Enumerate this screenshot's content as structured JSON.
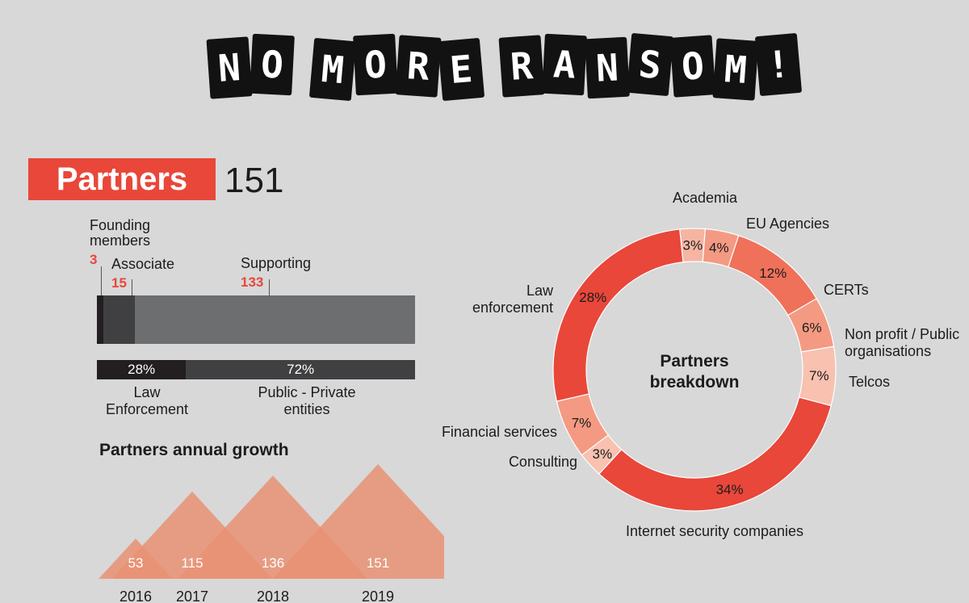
{
  "title": {
    "letters": [
      "N",
      "O",
      " ",
      "M",
      "O",
      "R",
      "E",
      " ",
      "R",
      "A",
      "N",
      "S",
      "O",
      "M",
      "!"
    ],
    "text": "NO MORE RANSOM!"
  },
  "partners": {
    "heading": "Partners",
    "total": "151",
    "membership": {
      "founding_label": "Founding members",
      "founding_value": "3",
      "associate_label": "Associate",
      "associate_value": "15",
      "supporting_label": "Supporting",
      "supporting_value": "133"
    },
    "type_split": {
      "law_pct": "28%",
      "law_label": "Law Enforcement",
      "public_pct": "72%",
      "public_label": "Public - Private entities"
    },
    "growth_title": "Partners annual growth"
  },
  "colors": {
    "accent": "#e8473a",
    "salmon": "#e99274",
    "bar_dark": "#231f20",
    "bar_mid": "#404042",
    "bar_light": "#6d6e70"
  },
  "chart_data": [
    {
      "type": "bar",
      "title": "",
      "categories": [
        "Founding members",
        "Associate",
        "Supporting"
      ],
      "values": [
        3,
        15,
        133
      ],
      "stacked": true
    },
    {
      "type": "bar",
      "title": "",
      "categories": [
        "Law Enforcement",
        "Public - Private entities"
      ],
      "values": [
        28,
        72
      ],
      "labels": [
        "28%",
        "72%"
      ],
      "stacked": true
    },
    {
      "type": "area",
      "title": "Partners annual growth",
      "categories": [
        "2016",
        "2017",
        "2018",
        "2019"
      ],
      "values": [
        53,
        115,
        136,
        151
      ],
      "labels": [
        "53",
        "115",
        "136",
        "151"
      ]
    },
    {
      "type": "pie",
      "title": "Partners breakdown",
      "center_label": "Partners breakdown",
      "slices": [
        {
          "label": "Academia",
          "value": 3,
          "pct_label": "3%",
          "color": "#f6b5a3"
        },
        {
          "label": "EU Agencies",
          "value": 4,
          "pct_label": "4%",
          "color": "#f49a82"
        },
        {
          "label": "CERTs",
          "value": 12,
          "pct_label": "12%",
          "color": "#ef715a"
        },
        {
          "label": "Non profit / Public organisations",
          "value": 6,
          "pct_label": "6%",
          "color": "#f49a82"
        },
        {
          "label": "Telcos",
          "value": 7,
          "pct_label": "7%",
          "color": "#f8c1b0"
        },
        {
          "label": "Internet security companies",
          "value": 34,
          "pct_label": "34%",
          "color": "#e8473a"
        },
        {
          "label": "Consulting",
          "value": 3,
          "pct_label": "3%",
          "color": "#f8c1b0"
        },
        {
          "label": "Financial services",
          "value": 7,
          "pct_label": "7%",
          "color": "#f49a82"
        },
        {
          "label": "Law enforcement",
          "value": 28,
          "pct_label": "28%",
          "color": "#e8473a"
        }
      ]
    }
  ]
}
